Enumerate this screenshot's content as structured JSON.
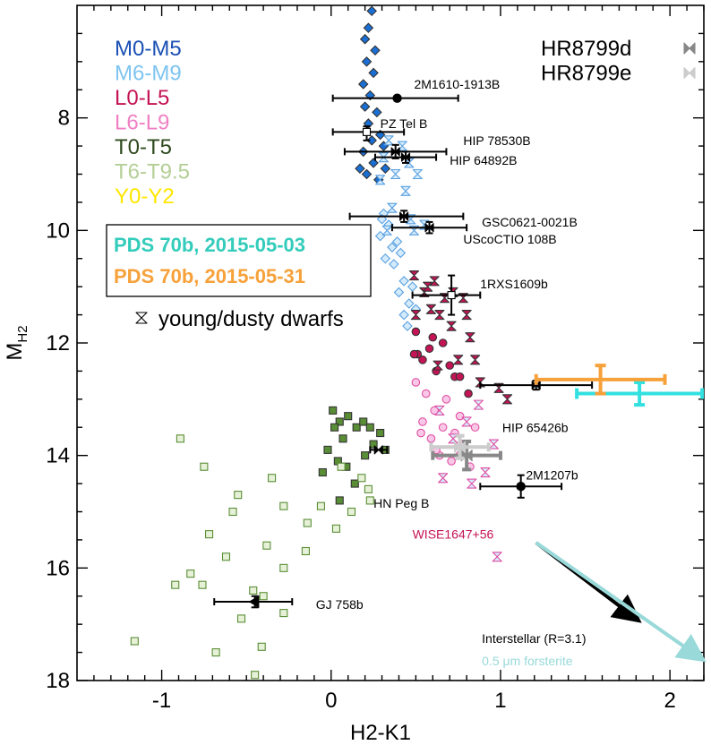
{
  "chart_data": {
    "type": "scatter",
    "xlabel": "H2-K1",
    "ylabel_main": "M",
    "ylabel_sub": "H2",
    "xlim": [
      -1.5,
      2.2
    ],
    "ylim": [
      18,
      6.0
    ],
    "y_inverted": true,
    "xticks": [
      -1,
      0,
      1,
      2
    ],
    "yticks": [
      8,
      10,
      12,
      14,
      16,
      18
    ],
    "xtick_labels": [
      "-1",
      "0",
      "1",
      "2"
    ],
    "ytick_labels": [
      "8",
      "10",
      "12",
      "14",
      "16",
      "18"
    ],
    "legend_spt": [
      {
        "label": "M0-M5",
        "color": "#1a4fb4"
      },
      {
        "label": "M6-M9",
        "color": "#7ec4f0"
      },
      {
        "label": "L0-L5",
        "color": "#c41455"
      },
      {
        "label": "L6-L9",
        "color": "#f07fc4"
      },
      {
        "label": "T0-T5",
        "color": "#2e4a1e"
      },
      {
        "label": "T6-T9.5",
        "color": "#b4cf96"
      },
      {
        "label": "Y0-Y2",
        "color": "#ffe600"
      }
    ],
    "legend_hr": [
      {
        "label": "HR8799d",
        "color": "#888888"
      },
      {
        "label": "HR8799e",
        "color": "#cccccc"
      }
    ],
    "legend_pds": [
      {
        "label": "PDS 70b, 2015-05-03",
        "color": "#33ccbb"
      },
      {
        "label": "PDS 70b, 2015-05-31",
        "color": "#f7a13a"
      }
    ],
    "young_label": "young/dusty dwarfs",
    "field_series": [
      {
        "group": "M0-M5",
        "marker": "diamond",
        "filled": true,
        "color": "#1a6fd4",
        "points": [
          [
            0.24,
            6.1
          ],
          [
            0.22,
            6.4
          ],
          [
            0.2,
            6.6
          ],
          [
            0.26,
            6.8
          ],
          [
            0.21,
            7.0
          ],
          [
            0.25,
            7.2
          ],
          [
            0.19,
            7.4
          ],
          [
            0.23,
            7.6
          ],
          [
            0.2,
            7.8
          ],
          [
            0.27,
            7.9
          ],
          [
            0.22,
            8.1
          ],
          [
            0.29,
            8.3
          ],
          [
            0.24,
            8.4
          ],
          [
            0.31,
            8.5
          ],
          [
            0.19,
            8.6
          ],
          [
            0.25,
            8.8
          ],
          [
            0.32,
            8.9
          ],
          [
            0.21,
            9.0
          ],
          [
            0.28,
            9.1
          ],
          [
            0.17,
            8.9
          ]
        ]
      },
      {
        "group": "M6-M9",
        "marker": "diamond",
        "filled": false,
        "color": "#5aa0e0",
        "points": [
          [
            0.31,
            9.7
          ],
          [
            0.34,
            9.9
          ],
          [
            0.29,
            10.1
          ],
          [
            0.36,
            10.3
          ],
          [
            0.32,
            10.5
          ],
          [
            0.39,
            10.2
          ],
          [
            0.3,
            9.8
          ],
          [
            0.41,
            10.4
          ],
          [
            0.43,
            10.9
          ],
          [
            0.4,
            11.1
          ],
          [
            0.46,
            11.3
          ],
          [
            0.43,
            11.5
          ],
          [
            0.48,
            11.0
          ],
          [
            0.45,
            11.7
          ],
          [
            0.5,
            11.4
          ],
          [
            0.37,
            10.6
          ]
        ]
      },
      {
        "group": "M6-M9 young",
        "marker": "hourglass",
        "filled": false,
        "color": "#5aa0e0",
        "points": [
          [
            0.34,
            8.4
          ],
          [
            0.42,
            8.5
          ],
          [
            0.31,
            8.7
          ],
          [
            0.46,
            8.8
          ],
          [
            0.38,
            9.0
          ],
          [
            0.51,
            9.0
          ],
          [
            0.29,
            9.1
          ],
          [
            0.44,
            9.3
          ],
          [
            0.36,
            9.6
          ],
          [
            0.47,
            9.8
          ],
          [
            0.55,
            9.9
          ],
          [
            0.33,
            10.0
          ],
          [
            0.49,
            10.0
          ]
        ]
      },
      {
        "group": "L0-L5",
        "marker": "circle",
        "filled": true,
        "color": "#c41455",
        "points": [
          [
            0.5,
            11.8
          ],
          [
            0.6,
            11.9
          ],
          [
            0.66,
            12.0
          ],
          [
            0.54,
            12.3
          ],
          [
            0.7,
            12.4
          ],
          [
            0.51,
            12.2
          ],
          [
            0.62,
            12.5
          ],
          [
            0.49,
            12.2
          ],
          [
            0.73,
            12.6
          ],
          [
            0.81,
            12.9
          ],
          [
            0.76,
            12.6
          ],
          [
            0.58,
            12.1
          ]
        ]
      },
      {
        "group": "L0-L5 young",
        "marker": "hourglass",
        "filled": true,
        "color": "#c41455",
        "points": [
          [
            0.49,
            10.8
          ],
          [
            0.61,
            10.9
          ],
          [
            0.72,
            11.1
          ],
          [
            0.55,
            11.1
          ],
          [
            0.67,
            11.2
          ],
          [
            0.78,
            11.2
          ],
          [
            0.5,
            11.5
          ],
          [
            0.64,
            11.5
          ],
          [
            0.71,
            11.7
          ],
          [
            0.82,
            11.9
          ],
          [
            0.75,
            12.3
          ],
          [
            0.85,
            12.3
          ],
          [
            0.63,
            12.4
          ],
          [
            0.88,
            12.7
          ],
          [
            0.99,
            12.8
          ],
          [
            1.04,
            13.0
          ],
          [
            0.59,
            11.4
          ],
          [
            0.8,
            11.5
          ],
          [
            0.57,
            11.0
          ]
        ]
      },
      {
        "group": "L6-L9",
        "marker": "circle",
        "filled": false,
        "color": "#e04fa4",
        "points": [
          [
            0.5,
            12.7
          ],
          [
            0.56,
            12.9
          ],
          [
            0.61,
            13.2
          ],
          [
            0.54,
            13.4
          ],
          [
            0.66,
            13.5
          ],
          [
            0.73,
            13.6
          ],
          [
            0.59,
            13.7
          ],
          [
            0.78,
            13.8
          ],
          [
            0.64,
            14.0
          ],
          [
            0.71,
            14.1
          ],
          [
            0.82,
            14.2
          ],
          [
            0.53,
            13.6
          ],
          [
            0.68,
            13.0
          ],
          [
            0.76,
            13.3
          ],
          [
            0.85,
            13.5
          ],
          [
            0.62,
            13.9
          ]
        ]
      },
      {
        "group": "L6-L9 young",
        "marker": "hourglass",
        "filled": false,
        "color": "#e04fa4",
        "points": [
          [
            0.64,
            13.2
          ],
          [
            0.8,
            13.4
          ],
          [
            0.87,
            13.1
          ],
          [
            0.72,
            13.7
          ],
          [
            0.91,
            14.3
          ],
          [
            0.83,
            14.5
          ],
          [
            0.66,
            14.4
          ],
          [
            0.76,
            13.9
          ],
          [
            0.96,
            13.8
          ],
          [
            0.98,
            15.8
          ]
        ]
      },
      {
        "group": "T0-T5",
        "marker": "square",
        "filled": true,
        "color": "#5a8e36",
        "points": [
          [
            0.01,
            13.2
          ],
          [
            0.05,
            13.4
          ],
          [
            0.1,
            13.3
          ],
          [
            0.02,
            13.5
          ],
          [
            0.07,
            13.7
          ],
          [
            -0.02,
            13.9
          ],
          [
            0.04,
            14.1
          ],
          [
            0.09,
            14.2
          ],
          [
            0.15,
            13.5
          ],
          [
            0.19,
            13.4
          ],
          [
            0.23,
            13.5
          ],
          [
            0.25,
            13.8
          ],
          [
            0.29,
            13.6
          ],
          [
            0.32,
            13.9
          ],
          [
            0.2,
            14.0
          ],
          [
            0.14,
            14.5
          ],
          [
            0.05,
            14.8
          ],
          [
            -0.05,
            14.3
          ]
        ]
      },
      {
        "group": "T6-T9.5",
        "marker": "square",
        "filled": false,
        "color": "#5a8e36",
        "points": [
          [
            -0.89,
            13.7
          ],
          [
            -0.75,
            14.2
          ],
          [
            -0.55,
            14.7
          ],
          [
            -0.35,
            14.4
          ],
          [
            -0.28,
            14.9
          ],
          [
            -0.14,
            15.2
          ],
          [
            -0.06,
            14.9
          ],
          [
            0.03,
            15.3
          ],
          [
            0.12,
            15.0
          ],
          [
            0.18,
            14.4
          ],
          [
            0.22,
            14.6
          ],
          [
            -0.58,
            15.0
          ],
          [
            -0.72,
            15.4
          ],
          [
            -0.62,
            15.8
          ],
          [
            -0.38,
            15.6
          ],
          [
            -0.28,
            16.0
          ],
          [
            -0.15,
            15.7
          ],
          [
            -0.83,
            16.1
          ],
          [
            -0.92,
            16.3
          ],
          [
            -0.76,
            16.3
          ],
          [
            -0.46,
            16.4
          ],
          [
            -0.4,
            16.5
          ],
          [
            -0.28,
            16.8
          ],
          [
            -0.53,
            16.9
          ],
          [
            -0.68,
            17.5
          ],
          [
            -0.41,
            17.4
          ],
          [
            -0.45,
            17.9
          ],
          [
            -1.16,
            17.3
          ],
          [
            0.06,
            14.2
          ],
          [
            0.23,
            14.8
          ]
        ]
      }
    ],
    "named_objects": [
      {
        "label": "2M1610-1913B",
        "x": 0.39,
        "y": 7.65,
        "xerr": [
          0.38,
          0.36
        ],
        "yerr": [
          0,
          0
        ],
        "marker": "circle",
        "label_x": 0.49,
        "label_y": 7.4
      },
      {
        "label": "PZ Tel B",
        "x": 0.21,
        "y": 8.25,
        "xerr": [
          0.2,
          0.22
        ],
        "yerr": [
          0.1,
          0.15
        ],
        "marker": "square-open",
        "label_x": 0.29,
        "label_y": 8.1
      },
      {
        "label": "HIP 78530B",
        "x": 0.38,
        "y": 8.6,
        "xerr": [
          0.3,
          0.3
        ],
        "yerr": [
          0.12,
          0.12
        ],
        "marker": "hourglass",
        "label_x": 0.78,
        "label_y": 8.4
      },
      {
        "label": "HIP 64892B",
        "x": 0.44,
        "y": 8.7,
        "xerr": [
          0.18,
          0.18
        ],
        "yerr": [
          0.1,
          0.1
        ],
        "marker": "hourglass",
        "label_x": 0.7,
        "label_y": 8.75
      },
      {
        "label": "GSC0621-0021B",
        "x": 0.43,
        "y": 9.75,
        "xerr": [
          0.32,
          0.35
        ],
        "yerr": [
          0.1,
          0.1
        ],
        "marker": "hourglass",
        "label_x": 0.89,
        "label_y": 9.85
      },
      {
        "label": "UScoCTIO 108B",
        "x": 0.58,
        "y": 9.95,
        "xerr": [
          0.22,
          0.22
        ],
        "yerr": [
          0.1,
          0.1
        ],
        "marker": "hourglass",
        "label_x": 0.78,
        "label_y": 10.15
      },
      {
        "label": "1RXS1609b",
        "x": 0.71,
        "y": 11.15,
        "xerr": [
          0.23,
          0.17
        ],
        "yerr": [
          0.35,
          0.35
        ],
        "marker": "square-open",
        "label_x": 0.88,
        "label_y": 10.95
      },
      {
        "label": "HIP 65426b",
        "x": 1.21,
        "y": 12.75,
        "xerr": [
          0.33,
          0.33
        ],
        "yerr": [
          0.08,
          0.08
        ],
        "marker": "hourglass",
        "label_x": 1.01,
        "label_y": 13.5
      },
      {
        "label": "2M1207b",
        "x": 1.12,
        "y": 14.55,
        "xerr": [
          0.24,
          0.24
        ],
        "yerr": [
          0.2,
          0.2
        ],
        "marker": "circle",
        "label_x": 1.15,
        "label_y": 14.35
      },
      {
        "label": "HN Peg B",
        "x": 0.28,
        "y": 13.9,
        "xerr": [
          0.05,
          0.05
        ],
        "yerr": [
          0,
          0
        ],
        "marker": "hourglass",
        "label_x": 0.25,
        "label_y": 14.85
      },
      {
        "label": "WISE1647+56",
        "x": 0.98,
        "y": 15.65,
        "xerr": [
          0,
          0
        ],
        "yerr": [
          0,
          0
        ],
        "marker": "none",
        "label_x": 0.48,
        "label_y": 15.4
      },
      {
        "label": "GJ 758b",
        "x": -0.45,
        "y": 16.6,
        "xerr": [
          0.24,
          0.22
        ],
        "yerr": [
          0.1,
          0.1
        ],
        "marker": "triangle-left",
        "label_x": -0.09,
        "label_y": 16.65
      }
    ],
    "hr8799": [
      {
        "label": "HR8799d",
        "x": 0.8,
        "y": 14.0,
        "xerr": [
          0.2,
          0.2
        ],
        "yerr": [
          0.25,
          0.25
        ],
        "color": "#888888"
      },
      {
        "label": "HR8799e",
        "x": 0.76,
        "y": 13.85,
        "xerr": [
          0.17,
          0.17
        ],
        "yerr": [
          0.2,
          0.2
        ],
        "color": "#cccccc"
      }
    ],
    "pds70": [
      {
        "label": "PDS 70b, 2015-05-03",
        "x": 1.82,
        "y": 12.9,
        "xerr": [
          0.37,
          0.37
        ],
        "yerr": [
          0.2,
          0.2
        ],
        "color": "#33e0e0"
      },
      {
        "label": "PDS 70b, 2015-05-31",
        "x": 1.59,
        "y": 12.65,
        "xerr": [
          0.38,
          0.38
        ],
        "yerr": [
          0.25,
          0.25
        ],
        "color": "#f7a13a"
      }
    ],
    "vectors": [
      {
        "label": "Interstellar (R=3.1)",
        "from": [
          1.21,
          15.55
        ],
        "to": [
          1.8,
          16.9
        ],
        "color": "#000000",
        "label_x": 0.89,
        "label_y": 17.25
      },
      {
        "label": "0.5 μm forsterite",
        "from": [
          1.21,
          15.55
        ],
        "to": [
          2.18,
          17.6
        ],
        "color": "#99d9d9",
        "label_x": 0.89,
        "label_y": 17.65
      }
    ]
  }
}
